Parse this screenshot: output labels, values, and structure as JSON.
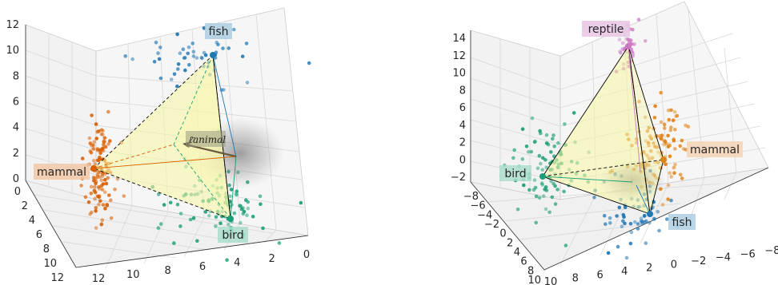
{
  "chart_data": [
    {
      "type": "scatter",
      "panel": "left",
      "title": "",
      "ylim": [
        0,
        12
      ],
      "xlim": [
        0,
        12
      ],
      "zlim": [
        0,
        12
      ],
      "axis_ticks": {
        "vertical": [
          "0",
          "2",
          "4",
          "6",
          "8",
          "10",
          "12"
        ],
        "depth": [
          "0",
          "2",
          "4",
          "6",
          "8",
          "10",
          "12"
        ],
        "bottom": [
          "12",
          "10",
          "8",
          "6",
          "4",
          "2",
          "0"
        ]
      },
      "series": [
        {
          "name": "fish",
          "color": "#1f77b4",
          "count": 50
        },
        {
          "name": "mammal",
          "color": "#d95f02",
          "count": 120
        },
        {
          "name": "bird",
          "color": "#1b9e77",
          "count": 100
        }
      ],
      "annotation": "ℓ̄animal",
      "colors": {
        "simplex": "#f5f5a0",
        "edge": "#000000"
      }
    },
    {
      "type": "scatter",
      "panel": "right",
      "title": "",
      "zlim": [
        -2,
        14
      ],
      "axis_ticks": {
        "vertical": [
          "−2",
          "0",
          "2",
          "4",
          "6",
          "8",
          "10",
          "12",
          "14"
        ],
        "depth": [
          "−8",
          "−6",
          "−4",
          "−2",
          "0",
          "2",
          "4",
          "6",
          "8",
          "10"
        ],
        "bottom": [
          "10",
          "8",
          "6",
          "4",
          "2",
          "0",
          "−2",
          "−4",
          "−6",
          "−8"
        ]
      },
      "series": [
        {
          "name": "reptile",
          "color": "#cc79c4",
          "count": 35
        },
        {
          "name": "mammal",
          "color": "#e08214",
          "count": 110
        },
        {
          "name": "bird",
          "color": "#1b9e77",
          "count": 90
        },
        {
          "name": "fish",
          "color": "#1f77b4",
          "count": 60
        }
      ],
      "colors": {
        "simplex": "#f5f5a0",
        "edge": "#000000"
      }
    }
  ]
}
